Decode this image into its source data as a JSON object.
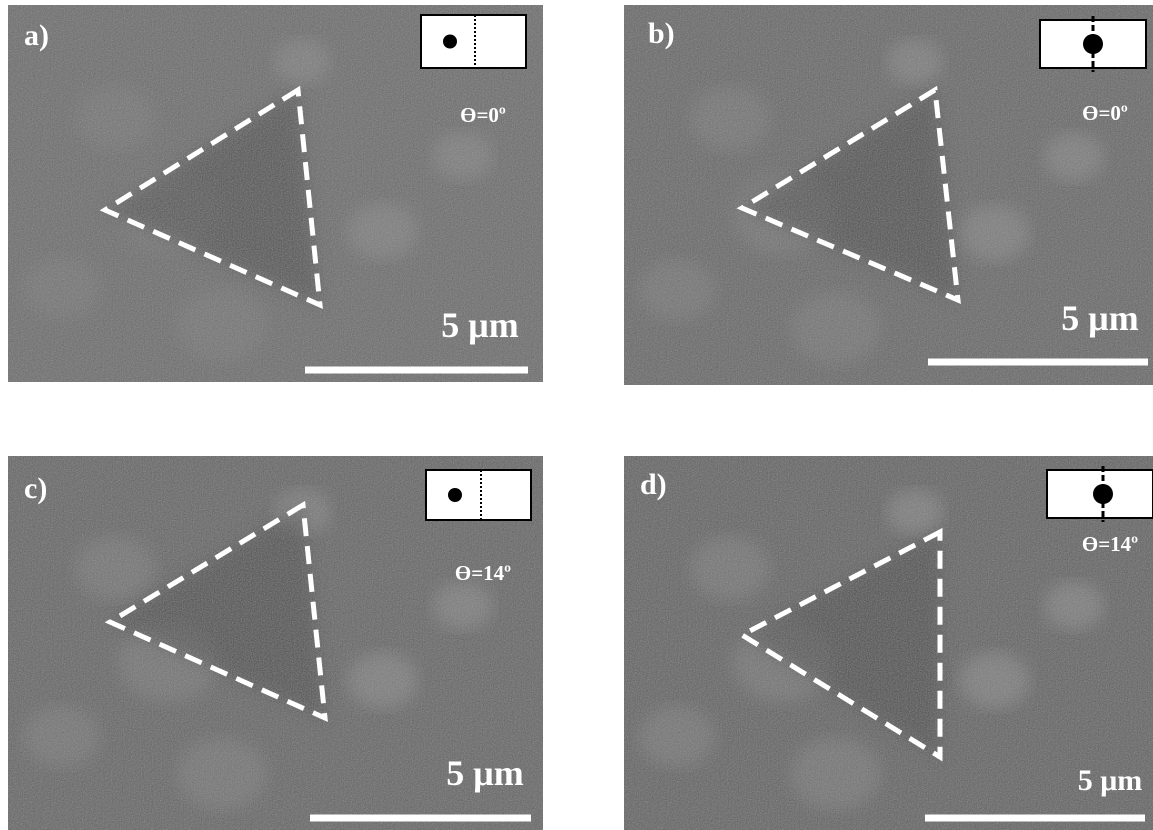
{
  "panels": [
    {
      "label": "a)",
      "angle": "ϴ=0º",
      "scale": "5 μm"
    },
    {
      "label": "b)",
      "angle": "ϴ=0º",
      "scale": "5 μm"
    },
    {
      "label": "c)",
      "angle": "ϴ=14º",
      "scale": "5 μm"
    },
    {
      "label": "d)",
      "angle": "ϴ=14º",
      "scale": "5 μm"
    }
  ]
}
